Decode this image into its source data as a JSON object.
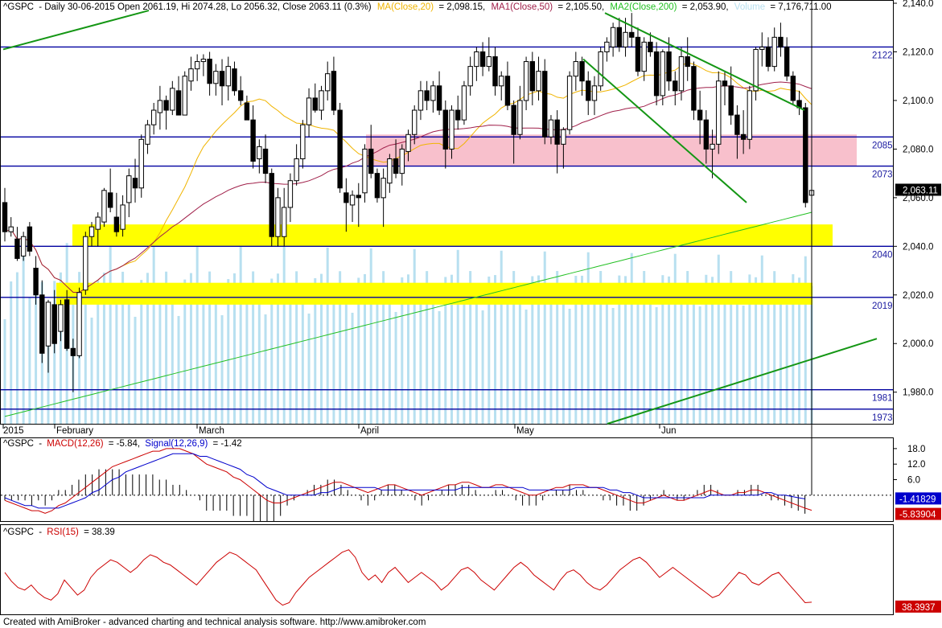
{
  "header": {
    "symbol": "^GSPC",
    "info": "- Daily 30-06-2015 Open 2061.19, Hi 2074.28, Lo 2056.32, Close 2063.11 (0.3%)",
    "ma20_label": "MA(Close,20)",
    "ma20_value": "= 2,098.15,",
    "ma50_label": "MA1(Close,50)",
    "ma50_value": "= 2,105.50,",
    "ma200_label": "MA2(Close,200)",
    "ma200_value": "= 2,053.90,",
    "volume_label": "Volume",
    "volume_value": "= 7,176,711.00"
  },
  "macd_header": {
    "symbol": "^GSPC",
    "macd_label": "MACD(12,26)",
    "macd_value": "= -5.84,",
    "signal_label": "Signal(12,26,9)",
    "signal_value": "= -1.42"
  },
  "rsi_header": {
    "symbol": "^GSPC",
    "rsi_label": "RSI(15)",
    "rsi_value": "= 38.39"
  },
  "footer": "Created with AmiBroker - advanced charting and technical analysis software. http://www.amibroker.com",
  "colors": {
    "ma20": "#f0b400",
    "ma50": "#a0204a",
    "ma200": "#22c022",
    "volume": "#b8e0f0",
    "macd": "#cc0000",
    "signal": "#0000cc",
    "rsi": "#cc0000",
    "trend": "#149614",
    "level": "#0000a0",
    "zone_yellow": "#ffff00",
    "zone_pink": "#f8c0cc"
  },
  "chart_data": [
    {
      "type": "candlestick",
      "name": "price",
      "y_ticks": [
        "2,140.0",
        "2,120.0",
        "2,100.0",
        "2,080.0",
        "2,060.0",
        "2,040.0",
        "2,020.0",
        "2,000.0",
        "1,980.0"
      ],
      "ylim": [
        1967,
        2141
      ],
      "x_labels": [
        "2015",
        "February",
        "March",
        "April",
        "May",
        "Jun"
      ],
      "last_price": "2,063.11",
      "levels": [
        {
          "label": "2122",
          "value": 2122
        },
        {
          "label": "2085",
          "value": 2085
        },
        {
          "label": "2073",
          "value": 2073
        },
        {
          "label": "2040",
          "value": 2040
        },
        {
          "label": "2019",
          "value": 2019
        },
        {
          "label": "1981",
          "value": 1981
        },
        {
          "label": "1973",
          "value": 1973
        }
      ],
      "candles": [
        [
          2058,
          2064,
          2042,
          2046
        ],
        [
          2046,
          2052,
          2044,
          2048
        ],
        [
          2043,
          2048,
          2034,
          2035
        ],
        [
          2036,
          2046,
          2034,
          2044
        ],
        [
          2048,
          2050,
          2036,
          2038
        ],
        [
          2031,
          2036,
          2016,
          2020
        ],
        [
          2020,
          2026,
          1992,
          1996
        ],
        [
          1999,
          2018,
          1988,
          2017
        ],
        [
          2016,
          2022,
          1996,
          2000
        ],
        [
          2005,
          2018,
          2001,
          2016
        ],
        [
          2018,
          2022,
          1997,
          1998
        ],
        [
          1998,
          2002,
          1980,
          1995
        ],
        [
          1995,
          2023,
          1994,
          2021
        ],
        [
          2022,
          2046,
          2020,
          2044
        ],
        [
          2044,
          2050,
          2040,
          2048
        ],
        [
          2047,
          2054,
          2040,
          2052
        ],
        [
          2050,
          2064,
          2048,
          2063
        ],
        [
          2062,
          2072,
          2054,
          2056
        ],
        [
          2052,
          2062,
          2044,
          2046
        ],
        [
          2047,
          2061,
          2044,
          2057
        ],
        [
          2058,
          2072,
          2052,
          2069
        ],
        [
          2068,
          2076,
          2058,
          2064
        ],
        [
          2064,
          2086,
          2060,
          2084
        ],
        [
          2082,
          2092,
          2078,
          2090
        ],
        [
          2090,
          2099,
          2086,
          2096
        ],
        [
          2095,
          2106,
          2088,
          2100
        ],
        [
          2100,
          2102,
          2088,
          2096
        ],
        [
          2096,
          2108,
          2094,
          2105
        ],
        [
          2104,
          2110,
          2094,
          2094
        ],
        [
          2094,
          2112,
          2094,
          2110
        ],
        [
          2108,
          2118,
          2104,
          2113
        ],
        [
          2113,
          2119,
          2108,
          2116
        ],
        [
          2116,
          2119,
          2110,
          2117
        ],
        [
          2117,
          2120,
          2102,
          2107
        ],
        [
          2107,
          2115,
          2102,
          2112
        ],
        [
          2112,
          2117,
          2098,
          2106
        ],
        [
          2106,
          2118,
          2100,
          2114
        ],
        [
          2113,
          2116,
          2102,
          2104
        ],
        [
          2104,
          2110,
          2098,
          2100
        ],
        [
          2099,
          2102,
          2092,
          2092
        ],
        [
          2092,
          2098,
          2072,
          2075
        ],
        [
          2076,
          2084,
          2070,
          2081
        ],
        [
          2080,
          2086,
          2066,
          2070
        ],
        [
          2070,
          2072,
          2040,
          2044
        ],
        [
          2044,
          2064,
          2040,
          2060
        ],
        [
          2044,
          2064,
          2040,
          2056
        ],
        [
          2056,
          2070,
          2050,
          2067
        ],
        [
          2067,
          2082,
          2065,
          2076
        ],
        [
          2076,
          2092,
          2072,
          2090
        ],
        [
          2090,
          2105,
          2085,
          2101
        ],
        [
          2101,
          2107,
          2095,
          2096
        ],
        [
          2096,
          2106,
          2092,
          2104
        ],
        [
          2104,
          2116,
          2100,
          2111
        ],
        [
          2112,
          2118,
          2094,
          2096
        ],
        [
          2096,
          2099,
          2062,
          2064
        ],
        [
          2062,
          2068,
          2046,
          2058
        ],
        [
          2057,
          2063,
          2050,
          2061
        ],
        [
          2061,
          2066,
          2048,
          2060
        ],
        [
          2062,
          2082,
          2058,
          2080
        ],
        [
          2080,
          2090,
          2068,
          2070
        ],
        [
          2070,
          2072,
          2058,
          2060
        ],
        [
          2060,
          2072,
          2048,
          2068
        ],
        [
          2066,
          2078,
          2062,
          2076
        ],
        [
          2076,
          2084,
          2068,
          2070
        ],
        [
          2070,
          2082,
          2065,
          2080
        ],
        [
          2079,
          2088,
          2075,
          2086
        ],
        [
          2086,
          2098,
          2082,
          2096
        ],
        [
          2096,
          2108,
          2092,
          2104
        ],
        [
          2104,
          2108,
          2096,
          2100
        ],
        [
          2100,
          2108,
          2095,
          2106
        ],
        [
          2106,
          2112,
          2094,
          2096
        ],
        [
          2096,
          2100,
          2072,
          2080
        ],
        [
          2080,
          2098,
          2076,
          2096
        ],
        [
          2096,
          2102,
          2088,
          2092
        ],
        [
          2092,
          2108,
          2090,
          2106
        ],
        [
          2106,
          2118,
          2102,
          2114
        ],
        [
          2114,
          2122,
          2108,
          2120
        ],
        [
          2120,
          2124,
          2110,
          2114
        ],
        [
          2114,
          2126,
          2112,
          2118
        ],
        [
          2118,
          2122,
          2102,
          2106
        ],
        [
          2106,
          2112,
          2100,
          2110
        ],
        [
          2110,
          2116,
          2096,
          2098
        ],
        [
          2098,
          2100,
          2074,
          2086
        ],
        [
          2086,
          2106,
          2084,
          2100
        ],
        [
          2100,
          2118,
          2096,
          2116
        ],
        [
          2116,
          2120,
          2098,
          2104
        ],
        [
          2104,
          2118,
          2100,
          2112
        ],
        [
          2112,
          2117,
          2082,
          2085
        ],
        [
          2085,
          2094,
          2082,
          2092
        ],
        [
          2092,
          2096,
          2070,
          2082
        ],
        [
          2082,
          2089,
          2072,
          2088
        ],
        [
          2088,
          2112,
          2086,
          2110
        ],
        [
          2110,
          2120,
          2104,
          2116
        ],
        [
          2116,
          2118,
          2102,
          2108
        ],
        [
          2108,
          2112,
          2094,
          2100
        ],
        [
          2100,
          2110,
          2094,
          2106
        ],
        [
          2106,
          2122,
          2104,
          2120
        ],
        [
          2120,
          2126,
          2116,
          2124
        ],
        [
          2122,
          2132,
          2118,
          2130
        ],
        [
          2130,
          2134,
          2120,
          2122
        ],
        [
          2122,
          2134,
          2118,
          2128
        ],
        [
          2128,
          2136,
          2122,
          2126
        ],
        [
          2126,
          2130,
          2110,
          2112
        ],
        [
          2112,
          2126,
          2108,
          2124
        ],
        [
          2124,
          2128,
          2118,
          2120
        ],
        [
          2120,
          2124,
          2098,
          2102
        ],
        [
          2102,
          2121,
          2098,
          2120
        ],
        [
          2120,
          2126,
          2104,
          2108
        ],
        [
          2108,
          2112,
          2098,
          2104
        ],
        [
          2104,
          2122,
          2100,
          2118
        ],
        [
          2118,
          2126,
          2108,
          2114
        ],
        [
          2114,
          2116,
          2092,
          2096
        ],
        [
          2096,
          2104,
          2082,
          2092
        ],
        [
          2092,
          2096,
          2074,
          2080
        ],
        [
          2080,
          2088,
          2068,
          2082
        ],
        [
          2082,
          2112,
          2078,
          2108
        ],
        [
          2108,
          2112,
          2098,
          2106
        ],
        [
          2106,
          2114,
          2090,
          2094
        ],
        [
          2094,
          2098,
          2076,
          2086
        ],
        [
          2086,
          2096,
          2078,
          2084
        ],
        [
          2084,
          2106,
          2080,
          2104
        ],
        [
          2104,
          2122,
          2100,
          2121
        ],
        [
          2121,
          2128,
          2114,
          2122
        ],
        [
          2122,
          2126,
          2112,
          2114
        ],
        [
          2114,
          2130,
          2112,
          2126
        ],
        [
          2126,
          2132,
          2118,
          2122
        ],
        [
          2122,
          2126,
          2108,
          2110
        ],
        [
          2110,
          2112,
          2098,
          2100
        ],
        [
          2100,
          2104,
          2094,
          2097
        ],
        [
          2097,
          2099,
          2056,
          2058
        ],
        [
          2061,
          2074,
          2056,
          2063
        ]
      ],
      "volume_note": "volume bars overlay"
    },
    {
      "type": "line",
      "name": "macd",
      "y_ticks": [
        "18.0",
        "12.0",
        "6.0"
      ],
      "ylim": [
        -10,
        22
      ],
      "macd_last": "-5.83904",
      "signal_last": "-1.41829",
      "macd": [
        -2,
        -3,
        -4,
        -5,
        -6,
        -6,
        -7,
        -6,
        -4,
        -3,
        -1,
        1,
        3,
        5,
        7,
        9,
        11,
        12,
        13,
        14,
        15,
        16,
        17,
        17,
        18,
        18,
        18,
        17,
        16,
        14,
        12,
        11,
        10,
        9,
        7,
        6,
        4,
        2,
        0,
        -2,
        -3,
        -3,
        -2,
        -1,
        0,
        1,
        2,
        3,
        4,
        5,
        5,
        4,
        3,
        2,
        1,
        2,
        3,
        4,
        4,
        3,
        2,
        1,
        0,
        1,
        2,
        3,
        4,
        4,
        5,
        5,
        4,
        3,
        3,
        4,
        4,
        3,
        2,
        1,
        0,
        0,
        1,
        2,
        3,
        3,
        4,
        4,
        4,
        3,
        3,
        2,
        1,
        0,
        -1,
        -2,
        -3,
        -3,
        -2,
        -1,
        0,
        -1,
        -2,
        -2,
        -1,
        0,
        1,
        2,
        1,
        0,
        0,
        1,
        1,
        2,
        2,
        1,
        0,
        -1,
        -2,
        -3,
        -4,
        -5,
        -5.84
      ],
      "signal": [
        -1,
        -2,
        -3,
        -4,
        -4,
        -5,
        -5,
        -5,
        -5,
        -4,
        -3,
        -2,
        -1,
        1,
        2,
        4,
        6,
        7,
        9,
        10,
        11,
        12,
        13,
        14,
        15,
        16,
        16,
        16,
        16,
        15,
        15,
        14,
        13,
        12,
        11,
        10,
        8,
        7,
        5,
        3,
        2,
        1,
        0,
        0,
        0,
        0,
        0,
        1,
        1,
        2,
        3,
        3,
        3,
        3,
        3,
        3,
        2,
        2,
        2,
        2,
        2,
        2,
        2,
        2,
        2,
        2,
        2,
        2,
        3,
        3,
        3,
        3,
        3,
        3,
        3,
        3,
        3,
        3,
        2,
        2,
        2,
        2,
        2,
        2,
        2,
        3,
        3,
        3,
        3,
        3,
        2,
        2,
        1,
        1,
        0,
        -1,
        -1,
        -1,
        -1,
        -1,
        -1,
        -1,
        -1,
        -1,
        -1,
        0,
        0,
        0,
        0,
        0,
        0,
        0,
        0,
        1,
        1,
        0,
        0,
        -0.5,
        -1,
        -1.42
      ]
    },
    {
      "type": "line",
      "name": "rsi",
      "ylim": [
        30,
        90
      ],
      "rsi_last": "38.3937",
      "values": [
        62,
        55,
        50,
        48,
        52,
        46,
        42,
        40,
        45,
        56,
        50,
        44,
        48,
        58,
        64,
        68,
        72,
        70,
        66,
        62,
        66,
        72,
        76,
        74,
        70,
        68,
        64,
        60,
        56,
        52,
        58,
        64,
        70,
        74,
        78,
        76,
        72,
        68,
        64,
        56,
        48,
        40,
        36,
        38,
        46,
        52,
        58,
        62,
        66,
        70,
        74,
        78,
        80,
        74,
        62,
        56,
        60,
        54,
        62,
        66,
        60,
        54,
        58,
        62,
        58,
        54,
        48,
        52,
        58,
        64,
        66,
        62,
        56,
        52,
        48,
        54,
        60,
        66,
        70,
        66,
        60,
        56,
        52,
        48,
        56,
        62,
        64,
        60,
        54,
        50,
        48,
        52,
        58,
        64,
        68,
        72,
        74,
        70,
        64,
        58,
        62,
        66,
        62,
        58,
        54,
        50,
        46,
        42,
        44,
        50,
        56,
        62,
        60,
        54,
        52,
        56,
        60,
        62,
        56,
        50,
        44,
        38,
        38.39
      ]
    }
  ]
}
